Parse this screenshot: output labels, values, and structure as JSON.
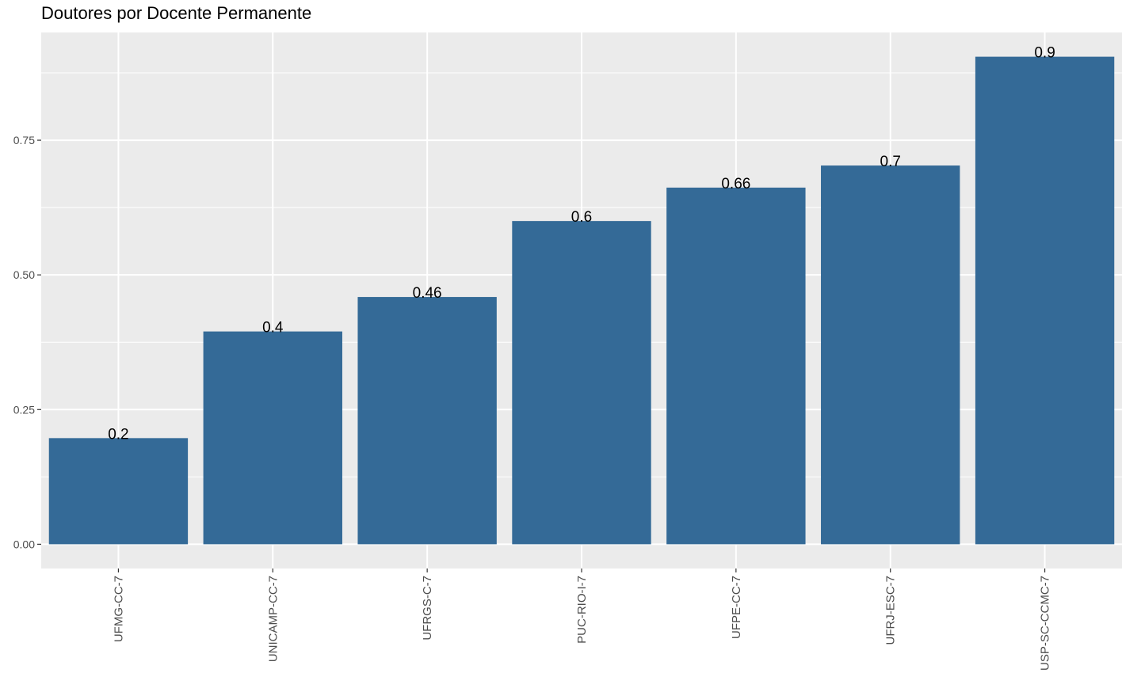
{
  "chart_data": {
    "type": "bar",
    "title": "Doutores por Docente Permanente",
    "xlabel": "",
    "ylabel": "",
    "categories": [
      "UFMG-CC-7",
      "UNICAMP-CC-7",
      "UFRGS-C-7",
      "PUC-RIO-I-7",
      "UFPE-CC-7",
      "UFRJ-ESC-7",
      "USP-SC-CCMC-7"
    ],
    "values": [
      0.197,
      0.395,
      0.459,
      0.6,
      0.662,
      0.703,
      0.905
    ],
    "data_labels": [
      "0.2",
      "0.4",
      "0.46",
      "0.6",
      "0.66",
      "0.7",
      "0.9"
    ],
    "yticks": [
      "0.00",
      "0.25",
      "0.50",
      "0.75"
    ],
    "ylim": [
      -0.045,
      0.95
    ],
    "grid": true,
    "bar_color": "#346a97",
    "panel_color": "#ebebeb",
    "grid_color": "#ffffff"
  }
}
